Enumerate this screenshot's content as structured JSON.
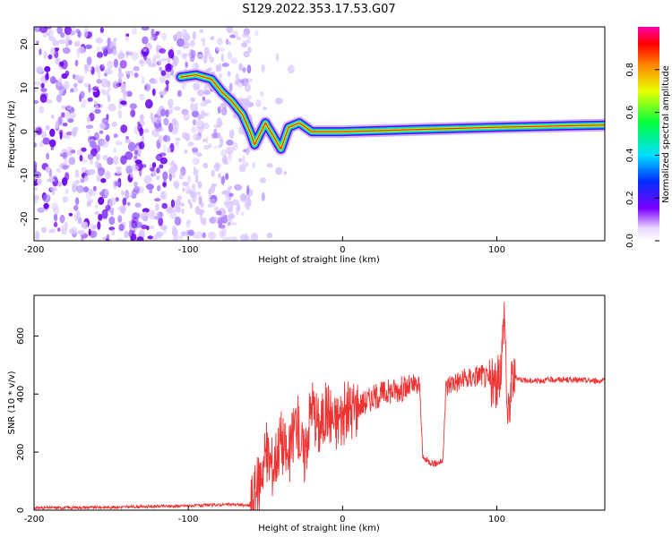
{
  "title": "S129.2022.353.17.53.G07",
  "chart_data": [
    {
      "type": "heatmap",
      "xlabel": "Height of straight line (km)",
      "ylabel": "Frequency (Hz)",
      "xlim": [
        -200,
        170
      ],
      "ylim": [
        -25,
        24
      ],
      "xticks": [
        "-200",
        "-100",
        "0",
        "100"
      ],
      "yticks": [
        "20",
        "10",
        "0",
        "-10",
        "-20"
      ],
      "colorbar": {
        "label": "Normalized spectral amplitude",
        "range": [
          0,
          1
        ],
        "ticks": [
          "0.0",
          "0.2",
          "0.4",
          "0.6",
          "0.8"
        ]
      },
      "ridge": [
        {
          "x": -105,
          "y": 12.5
        },
        {
          "x": -95,
          "y": 13
        },
        {
          "x": -85,
          "y": 12
        },
        {
          "x": -78,
          "y": 9
        },
        {
          "x": -72,
          "y": 7
        },
        {
          "x": -65,
          "y": 4
        },
        {
          "x": -60,
          "y": 0
        },
        {
          "x": -57,
          "y": -3
        },
        {
          "x": -50,
          "y": 2
        },
        {
          "x": -45,
          "y": -1
        },
        {
          "x": -40,
          "y": -4
        },
        {
          "x": -35,
          "y": 1
        },
        {
          "x": -28,
          "y": 2
        },
        {
          "x": -20,
          "y": 0
        },
        {
          "x": -10,
          "y": 0
        },
        {
          "x": 0,
          "y": 0
        },
        {
          "x": 50,
          "y": 0.5
        },
        {
          "x": 100,
          "y": 1
        },
        {
          "x": 170,
          "y": 1.5
        }
      ]
    },
    {
      "type": "line",
      "xlabel": "Height of straight line (km)",
      "ylabel": "SNR (10 * v/v)",
      "xlim": [
        -200,
        170
      ],
      "ylim": [
        0,
        740
      ],
      "xticks": [
        "-200",
        "-100",
        "0",
        "100"
      ],
      "yticks": [
        "0",
        "200",
        "400",
        "600"
      ],
      "color": "#ee3333",
      "x": [
        -200,
        -150,
        -100,
        -70,
        -60,
        -55,
        -50,
        -45,
        -40,
        -35,
        -30,
        -25,
        -20,
        -15,
        -10,
        -5,
        0,
        10,
        20,
        30,
        40,
        50,
        52,
        55,
        60,
        65,
        67,
        70,
        80,
        90,
        100,
        103,
        105,
        107,
        110,
        120,
        140,
        170
      ],
      "y": [
        8,
        10,
        15,
        20,
        15,
        80,
        200,
        150,
        250,
        170,
        320,
        180,
        370,
        280,
        350,
        300,
        330,
        360,
        390,
        410,
        420,
        430,
        180,
        170,
        160,
        170,
        420,
        440,
        450,
        470,
        420,
        520,
        700,
        300,
        460,
        445,
        450,
        445
      ]
    }
  ]
}
